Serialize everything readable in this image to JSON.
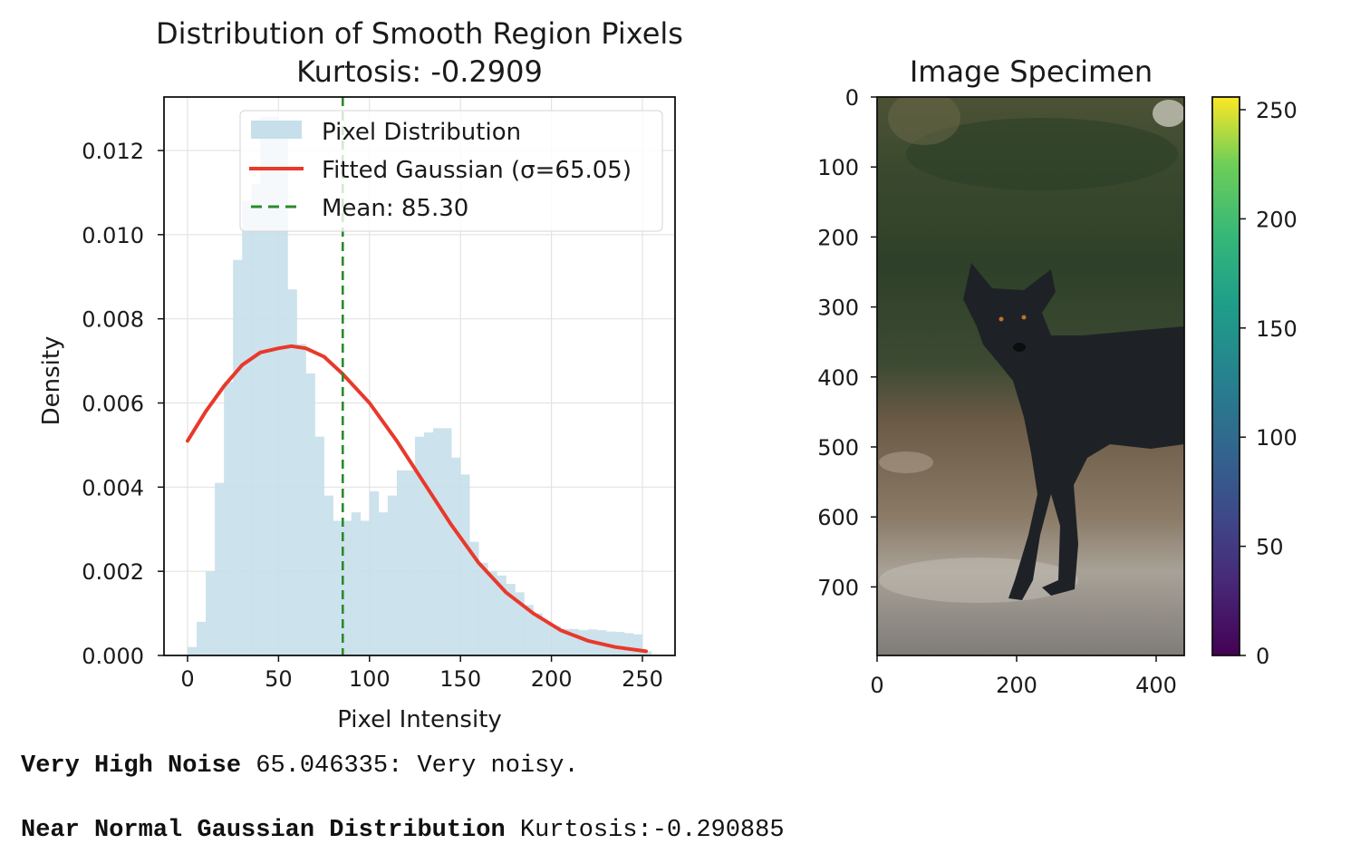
{
  "chart_data": [
    {
      "type": "bar",
      "title": "Distribution of Smooth Region Pixels",
      "subtitle": "Kurtosis: -0.2909",
      "xlabel": "Pixel Intensity",
      "ylabel": "Density",
      "xlim": [
        -13,
        268
      ],
      "ylim": [
        0,
        0.0133
      ],
      "xticks": [
        "0",
        "50",
        "100",
        "150",
        "200",
        "250"
      ],
      "yticks": [
        "0.000",
        "0.002",
        "0.004",
        "0.006",
        "0.008",
        "0.010",
        "0.012"
      ],
      "grid": true,
      "legend_position": "top-right",
      "histogram": {
        "name": "Pixel Distribution",
        "color": "#c6dfea",
        "bin_width": 5,
        "bin_starts": [
          0,
          5,
          10,
          15,
          20,
          25,
          30,
          35,
          40,
          45,
          50,
          55,
          60,
          65,
          70,
          75,
          80,
          85,
          90,
          95,
          100,
          105,
          110,
          115,
          120,
          125,
          130,
          135,
          140,
          145,
          150,
          155,
          160,
          165,
          170,
          175,
          180,
          185,
          190,
          195,
          200,
          205,
          210,
          215,
          220,
          225,
          230,
          235,
          240,
          245,
          250
        ],
        "values": [
          0.0002,
          0.0008,
          0.002,
          0.0041,
          0.0065,
          0.0094,
          0.0108,
          0.0112,
          0.0128,
          0.0128,
          0.0126,
          0.0087,
          0.0074,
          0.0067,
          0.0052,
          0.0038,
          0.0032,
          0.0032,
          0.0034,
          0.0032,
          0.0039,
          0.0034,
          0.0038,
          0.0044,
          0.0044,
          0.0052,
          0.0053,
          0.0054,
          0.0054,
          0.0047,
          0.0043,
          0.0027,
          0.0022,
          0.002,
          0.0019,
          0.0017,
          0.0015,
          0.0012,
          0.001,
          0.0008,
          0.0007,
          0.00063,
          0.00063,
          0.0006,
          0.00062,
          0.0006,
          0.00057,
          0.00056,
          0.00053,
          0.0005,
          0.0001
        ]
      },
      "gaussian": {
        "name": "Fitted Gaussian (σ=65.05)",
        "color": "#e8392b",
        "x": [
          0,
          10,
          20,
          30,
          40,
          50,
          57,
          65,
          75,
          85,
          100,
          115,
          130,
          145,
          160,
          175,
          190,
          205,
          220,
          235,
          252
        ],
        "y": [
          0.0051,
          0.0058,
          0.0064,
          0.0069,
          0.0072,
          0.0073,
          0.00735,
          0.0073,
          0.0071,
          0.0067,
          0.006,
          0.0051,
          0.0041,
          0.0031,
          0.0022,
          0.0015,
          0.001,
          0.0006,
          0.00035,
          0.0002,
          0.0001
        ]
      },
      "mean_line": {
        "name": "Mean: 85.30",
        "value": 85.3,
        "color": "#2a8a2a"
      }
    },
    {
      "type": "image",
      "title": "Image Specimen",
      "xlim": [
        0,
        440
      ],
      "ylim": [
        800,
        0
      ],
      "xticks": [
        "0",
        "200",
        "400"
      ],
      "yticks": [
        "0",
        "100",
        "200",
        "300",
        "400",
        "500",
        "600",
        "700"
      ],
      "colorbar": {
        "colormap": "viridis",
        "range": [
          0,
          255
        ],
        "ticks": [
          "0",
          "50",
          "100",
          "150",
          "200",
          "250"
        ]
      }
    }
  ],
  "output": {
    "line1_bold": "Very High Noise",
    "line1_text": " 65.046335: Very noisy.",
    "line2_bold": "Near Normal Gaussian Distribution",
    "line2_text": " Kurtosis:-0.290885"
  }
}
